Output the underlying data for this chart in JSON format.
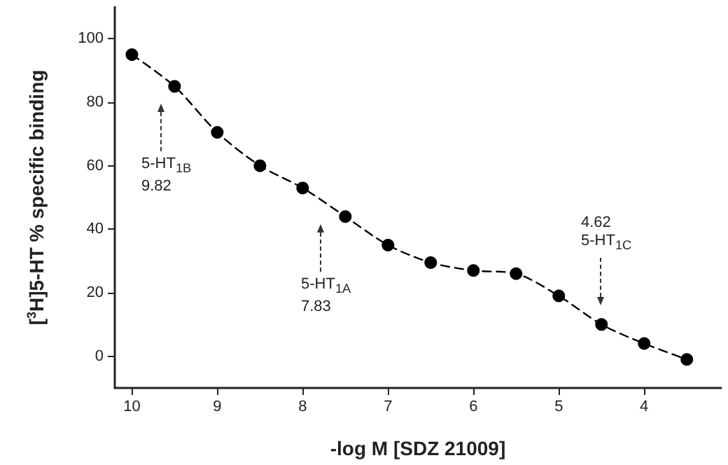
{
  "chart_data": {
    "type": "line",
    "xlabel": "-log M [SDZ 21009]",
    "ylabel": "[$^{3}$H]5-HT % specific binding",
    "x": [
      10,
      9.5,
      9,
      8.5,
      8,
      7.5,
      7,
      6.5,
      6,
      5.5,
      5,
      4.5,
      4,
      3.5
    ],
    "series": [
      {
        "color": "#000000",
        "values": [
          95,
          85,
          70.5,
          60,
          53,
          44,
          35,
          29.5,
          27,
          26,
          19,
          10,
          4,
          -1
        ]
      }
    ],
    "xlim": [
      10.2,
      3.1
    ],
    "xticks": [
      10,
      9,
      8,
      7,
      6,
      5,
      4
    ],
    "ylim": [
      -10,
      110
    ],
    "yticks": [
      0,
      20,
      40,
      60,
      80,
      100
    ],
    "annotations": [
      "5-HT$_{1B}$\n9.82",
      "5-HT$_{1A}$\n7.83",
      "4.62\n5-HT$_{1C}$"
    ],
    "marker": "circle",
    "line_style": "dashed",
    "grid": false
  }
}
